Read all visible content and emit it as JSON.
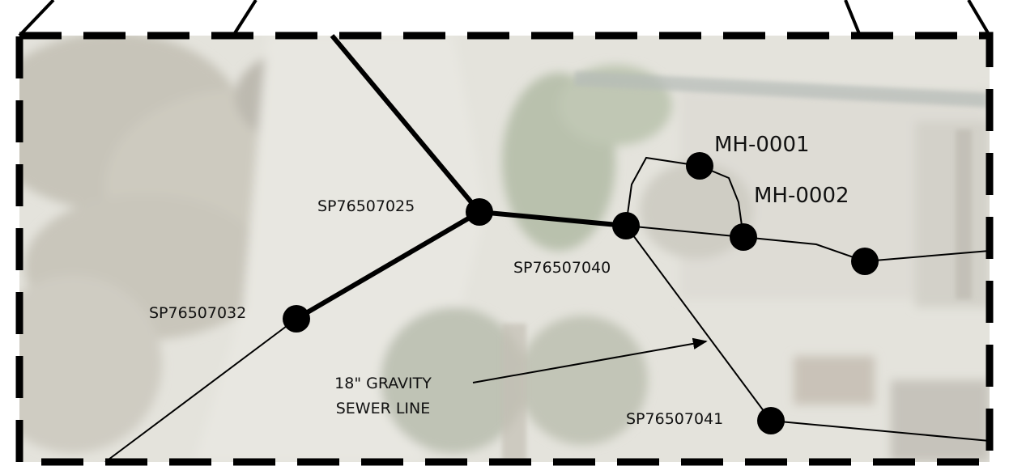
{
  "map": {
    "colors": {
      "background": "#ffffff",
      "aerial_light": "#e7e6df",
      "aerial_mid": "#c9c7bd",
      "aerial_tree": "#b8b6a8",
      "aerial_green": "#aeb9a2",
      "line": "#000000",
      "node": "#000000",
      "frame": "#000000"
    },
    "labels": {
      "sp76507025": "SP76507025",
      "sp76507032": "SP76507032",
      "sp76507040": "SP76507040",
      "sp76507041": "SP76507041",
      "mh0001": "MH-0001",
      "mh0002": "MH-0002"
    },
    "callout": {
      "line1": "18\" GRAVITY",
      "line2": "SEWER LINE"
    }
  }
}
